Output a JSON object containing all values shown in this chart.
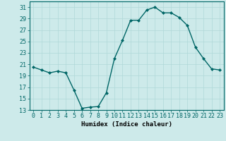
{
  "x": [
    0,
    1,
    2,
    3,
    4,
    5,
    6,
    7,
    8,
    9,
    10,
    11,
    12,
    13,
    14,
    15,
    16,
    17,
    18,
    19,
    20,
    21,
    22,
    23
  ],
  "y": [
    20.5,
    20.0,
    19.5,
    19.8,
    19.5,
    16.5,
    13.3,
    13.5,
    13.6,
    16.0,
    22.0,
    25.2,
    28.7,
    28.7,
    30.5,
    31.0,
    30.0,
    30.0,
    29.2,
    27.8,
    24.0,
    22.0,
    20.2,
    20.0
  ],
  "line_color": "#006666",
  "marker": "D",
  "marker_size": 2.0,
  "line_width": 1.0,
  "xlabel": "Humidex (Indice chaleur)",
  "ylim": [
    13,
    32
  ],
  "xlim": [
    -0.5,
    23.5
  ],
  "yticks": [
    13,
    15,
    17,
    19,
    21,
    23,
    25,
    27,
    29,
    31
  ],
  "xtick_labels": [
    "0",
    "1",
    "2",
    "3",
    "4",
    "5",
    "6",
    "7",
    "8",
    "9",
    "10",
    "11",
    "12",
    "13",
    "14",
    "15",
    "16",
    "17",
    "18",
    "19",
    "20",
    "21",
    "22",
    "23"
  ],
  "bg_color": "#cdeaea",
  "grid_color": "#b0d8d8",
  "tick_color": "#006666",
  "axis_fontsize": 6.5,
  "tick_fontsize": 6.0
}
